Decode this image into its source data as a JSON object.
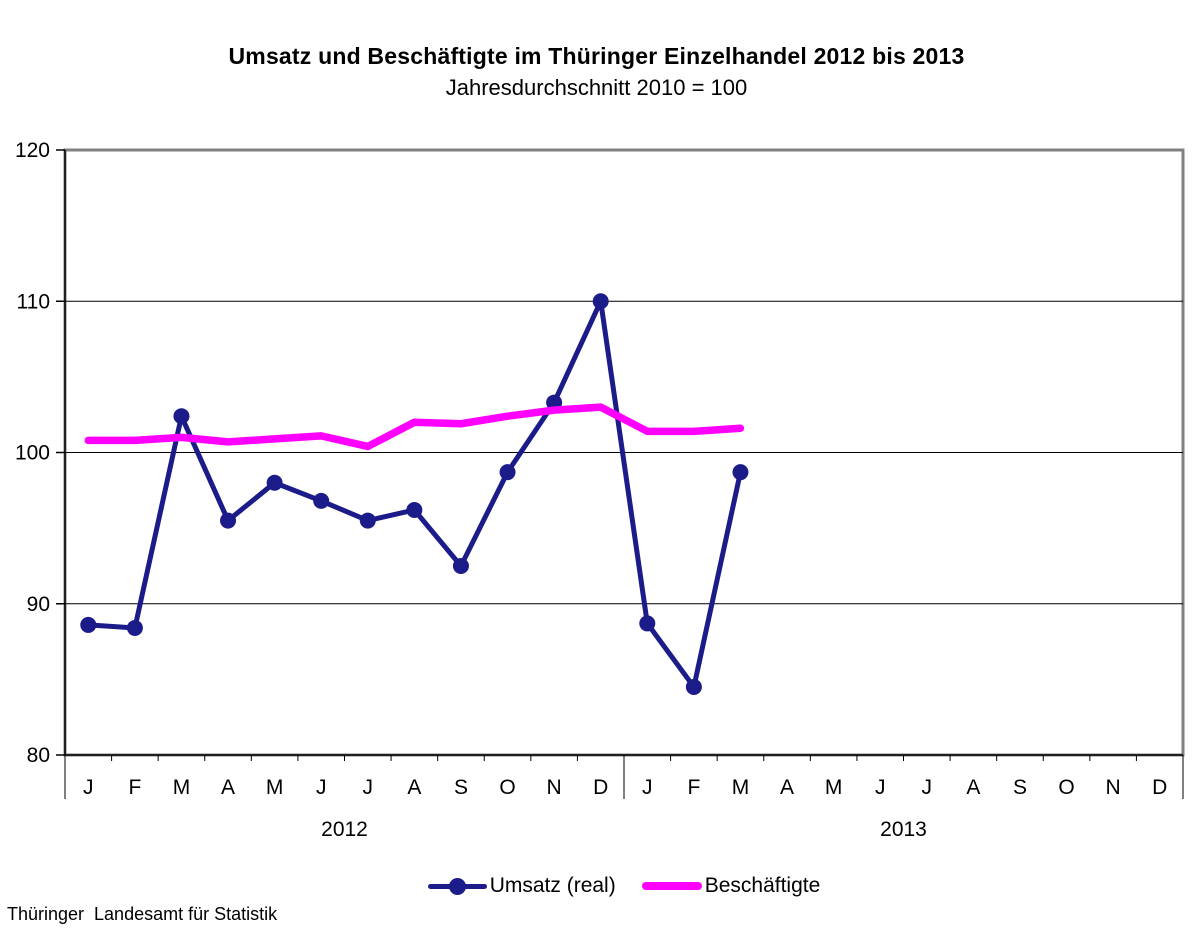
{
  "header": {
    "title": "Umsatz und Beschäftigte im Thüringer Einzelhandel 2012 bis 2013",
    "subtitle": "Jahresdurchschnitt 2010 = 100"
  },
  "footer": {
    "source": "Thüringer  Landesamt für Statistik"
  },
  "colors": {
    "umsatz": "#1B1B8A",
    "beschaeftigte": "#FF00FF",
    "gridline": "#000000",
    "plot_border": "#808080",
    "axis": "#000000",
    "background": "#FFFFFF"
  },
  "chart_data": {
    "type": "line",
    "title": "Umsatz und Beschäftigte im Thüringer Einzelhandel 2012 bis 2013",
    "subtitle": "Jahresdurchschnitt 2010 = 100",
    "xlabel": "",
    "ylabel": "",
    "ylim": [
      80,
      120
    ],
    "yticks": [
      80,
      90,
      100,
      110,
      120
    ],
    "gridlines": [
      90,
      100,
      110
    ],
    "grid": "horizontal",
    "legend_position": "bottom",
    "categories": [
      "J",
      "F",
      "M",
      "A",
      "M",
      "J",
      "J",
      "A",
      "S",
      "O",
      "N",
      "D",
      "J",
      "F",
      "M",
      "A",
      "M",
      "J",
      "J",
      "A",
      "S",
      "O",
      "N",
      "D"
    ],
    "year_groups": [
      {
        "label": "2012",
        "start": 0,
        "end": 11
      },
      {
        "label": "2013",
        "start": 12,
        "end": 23
      }
    ],
    "series": [
      {
        "name": "Umsatz (real)",
        "color": "#1B1B8A",
        "marker": "circle",
        "line_width": 5,
        "values": [
          88.6,
          88.4,
          102.4,
          95.5,
          98.0,
          96.8,
          95.5,
          96.2,
          92.5,
          98.7,
          103.3,
          110.0,
          88.7,
          84.5,
          98.7,
          null,
          null,
          null,
          null,
          null,
          null,
          null,
          null,
          null
        ]
      },
      {
        "name": "Beschäftigte",
        "color": "#FF00FF",
        "marker": "none",
        "line_width": 7.5,
        "values": [
          100.8,
          100.8,
          101.0,
          100.7,
          100.9,
          101.1,
          100.4,
          102.0,
          101.9,
          102.4,
          102.8,
          103.0,
          101.4,
          101.4,
          101.6,
          null,
          null,
          null,
          null,
          null,
          null,
          null,
          null,
          null
        ]
      }
    ]
  }
}
